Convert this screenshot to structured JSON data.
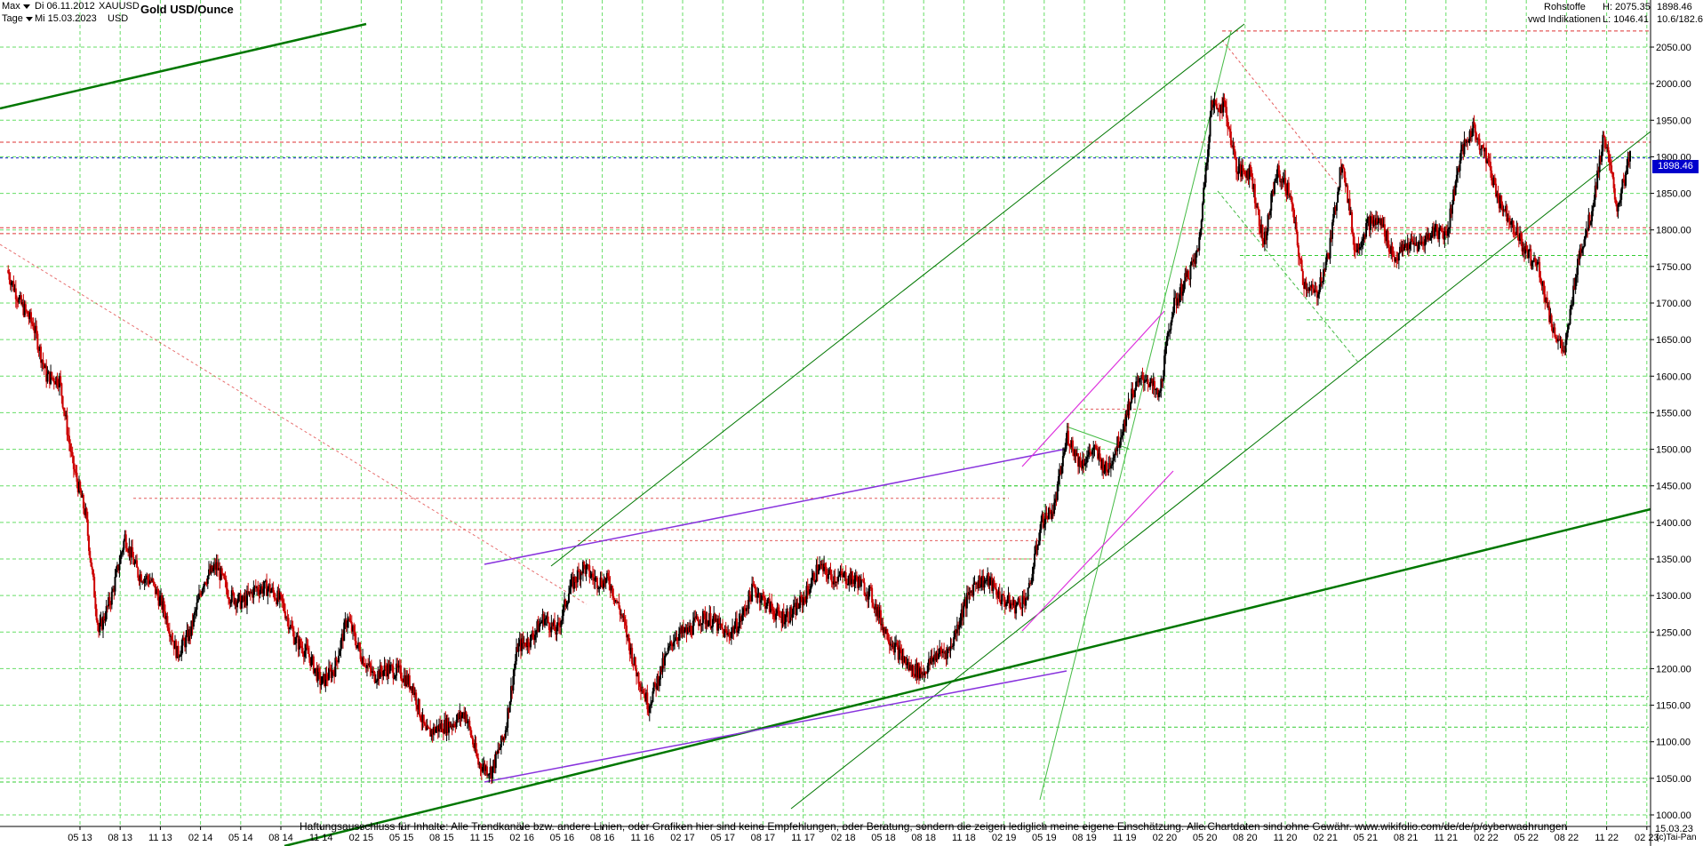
{
  "header": {
    "range_label": "Max",
    "interval_label": "Tage",
    "date_from": "Di 06.11.2012",
    "date_to": "Mi 15.03.2023",
    "symbol": "XAUUSD",
    "currency": "USD",
    "title": "Gold USD/Ounce"
  },
  "info": {
    "category": "Rohstoffe",
    "source": "vwd Indikationen",
    "last": "1898.46",
    "high": "H: 2075.35",
    "low": "L: 1046.41",
    "extra": "10.6/182.6"
  },
  "disclaimer": "Haftungsausschluss für Inhalte: Alle Trendkanäle bzw. andere Linien, oder Grafiken hier sind keine Empfehlungen, oder Beratung, sondern die zeigen lediglich meine eigene Einschätzung. Alle Chartdaten sind ohne Gewähr.  www.wikifolio.com/de/de/p/cyberwaehrungen",
  "copyright": "(c)Tai-Pan",
  "current_price_label": "1898.46",
  "end_date_label": "15.03.23",
  "colors": {
    "up": "#000000",
    "down": "#cc0000",
    "grid": "#66dd66",
    "trend_dark": "#007700",
    "trend_light": "#44bb44",
    "purple": "#8833dd",
    "magenta": "#dd33dd",
    "resistance": "#dd3333",
    "current_line": "#2233cc"
  },
  "chart_data": {
    "type": "line",
    "title": "Gold USD/Ounce",
    "xlabel": "",
    "ylabel": "",
    "y_axis_side": "right",
    "ylim": [
      1000,
      2100
    ],
    "y_ticks": [
      1000,
      1050,
      1100,
      1150,
      1200,
      1250,
      1300,
      1350,
      1400,
      1450,
      1500,
      1550,
      1600,
      1650,
      1700,
      1750,
      1800,
      1850,
      1900,
      1950,
      2000,
      2050
    ],
    "x_ticks": [
      "05 13",
      "08 13",
      "11 13",
      "02 14",
      "05 14",
      "08 14",
      "11 14",
      "02 15",
      "05 15",
      "08 15",
      "11 15",
      "02 16",
      "05 16",
      "08 16",
      "11 16",
      "02 17",
      "05 17",
      "08 17",
      "11 17",
      "02 18",
      "05 18",
      "08 18",
      "11 18",
      "02 19",
      "05 19",
      "08 19",
      "11 19",
      "02 20",
      "05 20",
      "08 20",
      "11 20",
      "02 21",
      "05 21",
      "08 21",
      "11 21",
      "02 22",
      "05 22",
      "08 22",
      "11 22",
      "02 23"
    ],
    "grid": true,
    "series": [
      {
        "x": [
          "11.2012",
          "12.2012",
          "01.2013",
          "02.2013",
          "03.2013",
          "04.2013",
          "05.2013",
          "06.2013",
          "07.2013",
          "08.2013",
          "09.2013",
          "10.2013",
          "11.2013",
          "12.2013",
          "01.2014",
          "02.2014",
          "03.2014",
          "04.2014",
          "05.2014",
          "06.2014",
          "07.2014",
          "08.2014",
          "09.2014",
          "10.2014",
          "11.2014",
          "12.2014",
          "01.2015",
          "02.2015",
          "03.2015",
          "04.2015",
          "05.2015",
          "06.2015",
          "07.2015",
          "08.2015",
          "09.2015",
          "10.2015",
          "11.2015",
          "12.2015",
          "01.2016",
          "02.2016",
          "03.2016",
          "04.2016",
          "05.2016",
          "06.2016",
          "07.2016",
          "08.2016",
          "09.2016",
          "10.2016",
          "11.2016",
          "12.2016",
          "01.2017",
          "02.2017",
          "03.2017",
          "04.2017",
          "05.2017",
          "06.2017",
          "07.2017",
          "08.2017",
          "09.2017",
          "10.2017",
          "11.2017",
          "12.2017",
          "01.2018",
          "02.2018",
          "03.2018",
          "04.2018",
          "05.2018",
          "06.2018",
          "07.2018",
          "08.2018",
          "09.2018",
          "10.2018",
          "11.2018",
          "12.2018",
          "01.2019",
          "02.2019",
          "03.2019",
          "04.2019",
          "05.2019",
          "06.2019",
          "07.2019",
          "08.2019",
          "09.2019",
          "10.2019",
          "11.2019",
          "12.2019",
          "01.2020",
          "02.2020",
          "03.2020",
          "04.2020",
          "05.2020",
          "06.2020",
          "07.2020",
          "08.2020",
          "09.2020",
          "10.2020",
          "11.2020",
          "12.2020",
          "01.2021",
          "02.2021",
          "03.2021",
          "04.2021",
          "05.2021",
          "06.2021",
          "07.2021",
          "08.2021",
          "09.2021",
          "10.2021",
          "11.2021",
          "12.2021",
          "01.2022",
          "02.2022",
          "03.2022",
          "04.2022",
          "05.2022",
          "06.2022",
          "07.2022",
          "08.2022",
          "09.2022",
          "10.2022",
          "11.2022",
          "12.2022",
          "01.2023",
          "02.2023",
          "03.2023"
        ],
        "values": [
          1745,
          1700,
          1670,
          1600,
          1595,
          1480,
          1410,
          1250,
          1300,
          1380,
          1330,
          1320,
          1280,
          1220,
          1250,
          1320,
          1340,
          1300,
          1290,
          1310,
          1310,
          1290,
          1240,
          1220,
          1180,
          1200,
          1270,
          1220,
          1190,
          1200,
          1195,
          1175,
          1110,
          1120,
          1125,
          1140,
          1070,
          1060,
          1110,
          1230,
          1240,
          1270,
          1250,
          1310,
          1340,
          1320,
          1320,
          1270,
          1200,
          1150,
          1200,
          1245,
          1250,
          1270,
          1265,
          1245,
          1265,
          1310,
          1290,
          1270,
          1275,
          1300,
          1340,
          1325,
          1325,
          1320,
          1300,
          1255,
          1225,
          1200,
          1195,
          1220,
          1225,
          1280,
          1320,
          1320,
          1295,
          1285,
          1300,
          1400,
          1420,
          1520,
          1480,
          1500,
          1470,
          1515,
          1580,
          1600,
          1570,
          1690,
          1730,
          1770,
          1970,
          1970,
          1880,
          1880,
          1780,
          1880,
          1850,
          1730,
          1710,
          1770,
          1900,
          1770,
          1810,
          1810,
          1760,
          1780,
          1780,
          1800,
          1795,
          1900,
          1940,
          1900,
          1840,
          1810,
          1770,
          1750,
          1670,
          1630,
          1760,
          1820,
          1930,
          1830,
          1900
        ]
      }
    ]
  }
}
